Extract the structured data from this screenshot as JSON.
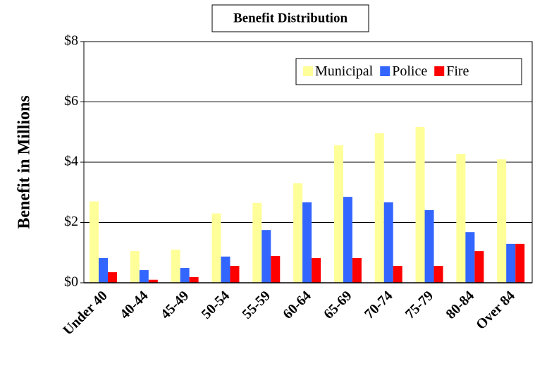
{
  "chart_data": {
    "type": "bar",
    "title": "Benefit Distribution",
    "ylabel": "Benefit in Millions",
    "categories": [
      "Under 40",
      "40-44",
      "45-49",
      "50-54",
      "55-59",
      "60-64",
      "65-69",
      "70-74",
      "75-79",
      "80-84",
      "Over 84"
    ],
    "series": [
      {
        "name": "Municipal",
        "color": "#ffff99",
        "values": [
          2.7,
          1.05,
          1.1,
          2.3,
          2.65,
          3.3,
          4.56,
          4.96,
          5.17,
          4.28,
          4.1
        ]
      },
      {
        "name": "Police",
        "color": "#3366ff",
        "values": [
          0.82,
          0.42,
          0.49,
          0.87,
          1.75,
          2.67,
          2.85,
          2.67,
          2.41,
          1.68,
          1.29
        ]
      },
      {
        "name": "Fire",
        "color": "#ff0000",
        "values": [
          0.35,
          0.1,
          0.19,
          0.56,
          0.89,
          0.82,
          0.82,
          0.56,
          0.56,
          1.05,
          1.29
        ]
      }
    ],
    "ylim": [
      0,
      8
    ],
    "yticks": [
      {
        "value": 0,
        "label": "$0"
      },
      {
        "value": 2,
        "label": "$2"
      },
      {
        "value": 4,
        "label": "$4"
      },
      {
        "value": 6,
        "label": "$6"
      },
      {
        "value": 8,
        "label": "$8"
      }
    ],
    "grid": true,
    "legend": "top-right"
  }
}
